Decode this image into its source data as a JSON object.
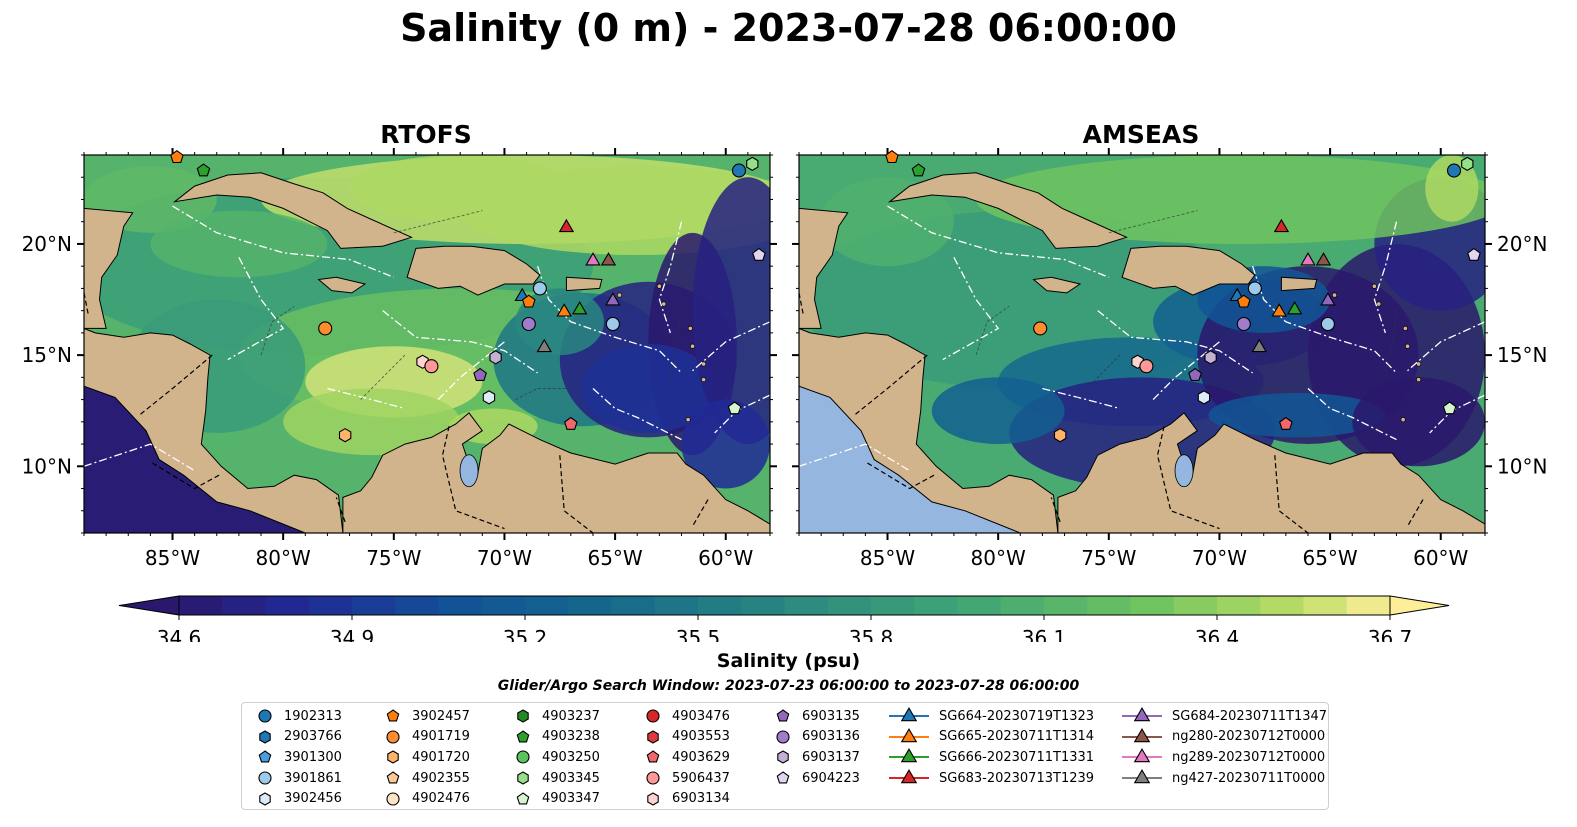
{
  "title": "Salinity (0 m) - 2023-07-28 06:00:00",
  "panels": [
    {
      "title": "RTOFS"
    },
    {
      "title": "AMSEAS"
    }
  ],
  "map": {
    "lon_range": [
      -89,
      -58
    ],
    "lat_range": [
      7,
      24
    ],
    "lon_ticks": [
      {
        "value": -85,
        "label": "85°W"
      },
      {
        "value": -80,
        "label": "80°W"
      },
      {
        "value": -75,
        "label": "75°W"
      },
      {
        "value": -70,
        "label": "70°W"
      },
      {
        "value": -65,
        "label": "65°W"
      },
      {
        "value": -60,
        "label": "60°W"
      }
    ],
    "lat_ticks": [
      {
        "value": 20,
        "label": "20°N"
      },
      {
        "value": 15,
        "label": "15°N"
      },
      {
        "value": 10,
        "label": "10°N"
      }
    ],
    "land_color": "#d2b48c",
    "ocean_deep_color": "#2a1b69"
  },
  "colorbar": {
    "min": 34.6,
    "max": 36.7,
    "tick_labels": [
      "34.6",
      "34.9",
      "35.2",
      "35.5",
      "35.8",
      "36.1",
      "36.4",
      "36.7"
    ],
    "label": "Salinity (psu)",
    "colormap": "haline",
    "extend": "both"
  },
  "search_window": "Glider/Argo Search Window: 2023-07-23 06:00:00 to 2023-07-28 06:00:00",
  "legend": {
    "columns": [
      [
        {
          "label": "1902313",
          "marker": "circle",
          "color": "#1f77b4"
        },
        {
          "label": "2903766",
          "marker": "hexagon",
          "color": "#1f77b4"
        },
        {
          "label": "3901300",
          "marker": "pentagon",
          "color": "#4a9de0"
        },
        {
          "label": "3901861",
          "marker": "circle",
          "color": "#9ecae9"
        },
        {
          "label": "3902456",
          "marker": "hexagon",
          "color": "#dcebf7"
        }
      ],
      [
        {
          "label": "3902457",
          "marker": "pentagon",
          "color": "#ff7f0e"
        },
        {
          "label": "4901719",
          "marker": "circle",
          "color": "#ff8c2e"
        },
        {
          "label": "4901720",
          "marker": "hexagon",
          "color": "#ffb36b"
        },
        {
          "label": "4902355",
          "marker": "pentagon",
          "color": "#ffc896"
        },
        {
          "label": "4902476",
          "marker": "circle",
          "color": "#ffe3c7"
        }
      ],
      [
        {
          "label": "4903237",
          "marker": "hexagon",
          "color": "#238b23"
        },
        {
          "label": "4903238",
          "marker": "pentagon",
          "color": "#2ca02c"
        },
        {
          "label": "4903250",
          "marker": "circle",
          "color": "#5dc35d"
        },
        {
          "label": "4903345",
          "marker": "hexagon",
          "color": "#98df8a"
        },
        {
          "label": "4903347",
          "marker": "pentagon",
          "color": "#d6f5cf"
        }
      ],
      [
        {
          "label": "4903476",
          "marker": "circle",
          "color": "#d62728"
        },
        {
          "label": "4903553",
          "marker": "hexagon",
          "color": "#e0393e"
        },
        {
          "label": "4903629",
          "marker": "pentagon",
          "color": "#f0686b"
        },
        {
          "label": "5906437",
          "marker": "circle",
          "color": "#ff9896"
        },
        {
          "label": "6903134",
          "marker": "hexagon",
          "color": "#ffd2d2"
        }
      ],
      [
        {
          "label": "6903135",
          "marker": "pentagon",
          "color": "#9467bd"
        },
        {
          "label": "6903136",
          "marker": "circle",
          "color": "#a27ccc"
        },
        {
          "label": "6903137",
          "marker": "hexagon",
          "color": "#c5b0d5"
        },
        {
          "label": "6904223",
          "marker": "pentagon",
          "color": "#e2d6ef"
        }
      ],
      [
        {
          "label": "SG664-20230719T1323",
          "marker": "triangle",
          "color": "#1f77b4"
        },
        {
          "label": "SG665-20230711T1314",
          "marker": "triangle",
          "color": "#ff7f0e"
        },
        {
          "label": "SG666-20230711T1331",
          "marker": "triangle",
          "color": "#2ca02c"
        },
        {
          "label": "SG683-20230713T1239",
          "marker": "triangle",
          "color": "#d62728"
        }
      ],
      [
        {
          "label": "SG684-20230711T1347",
          "marker": "triangle",
          "color": "#9467bd"
        },
        {
          "label": "ng280-20230712T0000",
          "marker": "triangle",
          "color": "#8c564b"
        },
        {
          "label": "ng289-20230712T0000",
          "marker": "triangle",
          "color": "#e377c2"
        },
        {
          "label": "ng427-20230711T0000",
          "marker": "triangle",
          "color": "#7f7f7f"
        }
      ]
    ]
  },
  "observations": [
    {
      "id": "1902313",
      "lon": -59.4,
      "lat": 23.3
    },
    {
      "id": "4903345",
      "lon": -58.8,
      "lat": 23.6
    },
    {
      "id": "6904223",
      "lon": -58.5,
      "lat": 19.5
    },
    {
      "id": "SG683-20230713T1239",
      "lon": -67.2,
      "lat": 20.8
    },
    {
      "id": "ng289-20230712T0000",
      "lon": -66.0,
      "lat": 19.3
    },
    {
      "id": "ng280-20230712T0000",
      "lon": -65.3,
      "lat": 19.3
    },
    {
      "id": "SG664-20230719T1323",
      "lon": -69.2,
      "lat": 17.7
    },
    {
      "id": "3902457",
      "lon": -68.9,
      "lat": 17.4
    },
    {
      "id": "3901861",
      "lon": -68.4,
      "lat": 18.0
    },
    {
      "id": "SG665-20230711T1314",
      "lon": -67.3,
      "lat": 17.0
    },
    {
      "id": "SG666-20230711T1331",
      "lon": -66.6,
      "lat": 17.1
    },
    {
      "id": "SG684-20230711T1347",
      "lon": -65.1,
      "lat": 17.5
    },
    {
      "id": "6903136",
      "lon": -68.9,
      "lat": 16.4
    },
    {
      "id": "3901861",
      "lon": -65.1,
      "lat": 16.4
    },
    {
      "id": "4901719",
      "lon": -78.1,
      "lat": 16.2
    },
    {
      "id": "ng427-20230711T0000",
      "lon": -68.2,
      "lat": 15.4
    },
    {
      "id": "6903137",
      "lon": -70.4,
      "lat": 14.9
    },
    {
      "id": "6903134",
      "lon": -73.7,
      "lat": 14.7
    },
    {
      "id": "5906437",
      "lon": -73.3,
      "lat": 14.5
    },
    {
      "id": "6903135",
      "lon": -71.1,
      "lat": 14.1
    },
    {
      "id": "3902456",
      "lon": -70.7,
      "lat": 13.1
    },
    {
      "id": "4903347",
      "lon": -59.6,
      "lat": 12.6
    },
    {
      "id": "4903629",
      "lon": -67.0,
      "lat": 11.9
    },
    {
      "id": "4901720",
      "lon": -77.2,
      "lat": 11.4
    },
    {
      "id": "4903238",
      "lon": -83.6,
      "lat": 23.3
    },
    {
      "id": "3902457",
      "lon": -84.8,
      "lat": 23.9
    }
  ]
}
